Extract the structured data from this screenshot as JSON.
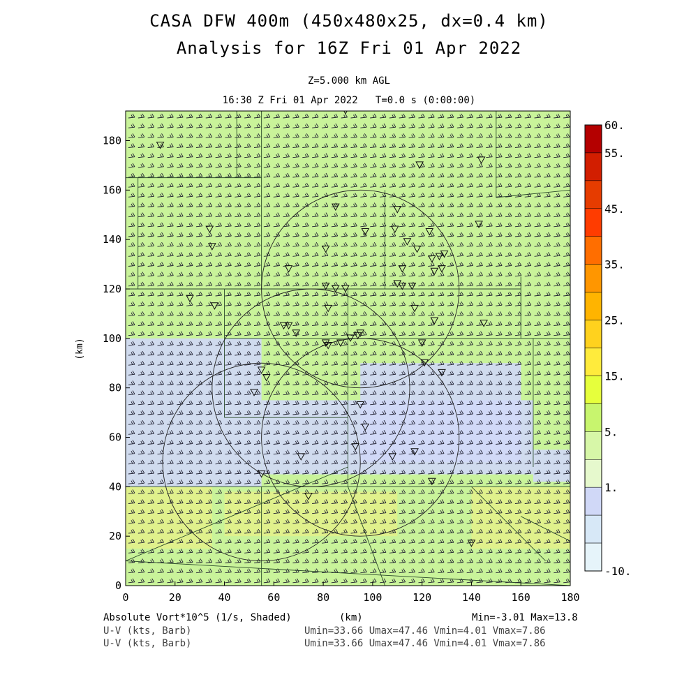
{
  "titles": {
    "line1": "CASA DFW 400m (450x480x25, dx=0.4 km)",
    "line2": "Analysis for 16Z Fri 01 Apr 2022",
    "level": "Z=5.000 km AGL",
    "time": "16:30 Z Fri 01 Apr 2022   T=0.0 s (0:00:00)"
  },
  "footer": {
    "field1": "Absolute Vort*10^5 (1/s, Shaded)",
    "field2": "U-V (kts, Barb)",
    "field3": "U-V (kts, Barb)",
    "xunit": "(km)",
    "minmax": "Min=-3.01 Max=13.8",
    "uv1": "Umin=33.66 Umax=47.46 Vmin=4.01 Vmax=7.86",
    "uv2": "Umin=33.66 Umax=47.46 Vmin=4.01 Vmax=7.86"
  },
  "chart_data": {
    "type": "heatmap",
    "xlabel": "(km)",
    "ylabel": "(km)",
    "xlim": [
      0,
      180
    ],
    "ylim": [
      0,
      192
    ],
    "x_ticks": [
      "0",
      "20",
      "40",
      "60",
      "80",
      "100",
      "120",
      "140",
      "160",
      "180"
    ],
    "y_ticks": [
      "0",
      "20",
      "40",
      "60",
      "80",
      "100",
      "120",
      "140",
      "160",
      "180"
    ],
    "colorbar": {
      "labels": [
        "60.",
        "55.",
        "45.",
        "35.",
        "25.",
        "15.",
        "5.",
        "1.",
        "-10."
      ],
      "colors": [
        "#b40000",
        "#d21e00",
        "#e63c00",
        "#ff3c00",
        "#ff6e00",
        "#ff9600",
        "#ffb400",
        "#ffd21e",
        "#ffeb3c",
        "#e6ff3c",
        "#c8f56e",
        "#d7f7a8",
        "#e6f9cd",
        "#d0d8f7",
        "#d7e8f7",
        "#e6f4fa"
      ],
      "color_labels_index": [
        0,
        1,
        3,
        5,
        7,
        9,
        11,
        13,
        16
      ]
    },
    "min": -3.01,
    "max": 13.8,
    "background_color": "#c9f39a",
    "low_vort_color": "#d0d8f7",
    "high_vort_color": "#e4f08a",
    "regions_low": [
      {
        "x": [
          0,
          55
        ],
        "y": [
          40,
          100
        ]
      },
      {
        "x": [
          55,
          165
        ],
        "y": [
          45,
          75
        ]
      },
      {
        "x": [
          95,
          160
        ],
        "y": [
          50,
          90
        ]
      },
      {
        "x": [
          165,
          180
        ],
        "y": [
          42,
          55
        ]
      }
    ],
    "regions_high": [
      {
        "x": [
          0,
          35
        ],
        "y": [
          15,
          40
        ]
      },
      {
        "x": [
          40,
          110
        ],
        "y": [
          20,
          38
        ]
      },
      {
        "x": [
          140,
          180
        ],
        "y": [
          15,
          40
        ]
      }
    ],
    "wind": {
      "umin": 33.66,
      "umax": 47.46,
      "vmin": 4.01,
      "vmax": 7.86
    },
    "radar_rings": [
      {
        "cx": 95,
        "cy": 120,
        "r": 40
      },
      {
        "cx": 75,
        "cy": 80,
        "r": 40
      },
      {
        "cx": 55,
        "cy": 50,
        "r": 40
      },
      {
        "cx": 95,
        "cy": 60,
        "r": 40
      }
    ],
    "station_triangles": [
      [
        14,
        178
      ],
      [
        89,
        192
      ],
      [
        119,
        170
      ],
      [
        144,
        172
      ],
      [
        85,
        153
      ],
      [
        110,
        152
      ],
      [
        143,
        146
      ],
      [
        34,
        144
      ],
      [
        97,
        143
      ],
      [
        109,
        144
      ],
      [
        123,
        143
      ],
      [
        35,
        137
      ],
      [
        81,
        136
      ],
      [
        114,
        139
      ],
      [
        118,
        136
      ],
      [
        124,
        132
      ],
      [
        127,
        133
      ],
      [
        129,
        134
      ],
      [
        66,
        128
      ],
      [
        112,
        128
      ],
      [
        125,
        127
      ],
      [
        128,
        128
      ],
      [
        81,
        121
      ],
      [
        85,
        120
      ],
      [
        89,
        120
      ],
      [
        110,
        122
      ],
      [
        112,
        121
      ],
      [
        116,
        121
      ],
      [
        26,
        116
      ],
      [
        36,
        113
      ],
      [
        82,
        112
      ],
      [
        117,
        112
      ],
      [
        64,
        105
      ],
      [
        66,
        105
      ],
      [
        69,
        102
      ],
      [
        81,
        98
      ],
      [
        82,
        97
      ],
      [
        87,
        98
      ],
      [
        91,
        100
      ],
      [
        94,
        101
      ],
      [
        95,
        102
      ],
      [
        125,
        107
      ],
      [
        120,
        98
      ],
      [
        121,
        90
      ],
      [
        145,
        106
      ],
      [
        55,
        87
      ],
      [
        57,
        84
      ],
      [
        52,
        78
      ],
      [
        128,
        86
      ],
      [
        95,
        73
      ],
      [
        97,
        64
      ],
      [
        117,
        54
      ],
      [
        71,
        52
      ],
      [
        93,
        56
      ],
      [
        108,
        52
      ],
      [
        55,
        45
      ],
      [
        74,
        36
      ],
      [
        124,
        42
      ],
      [
        140,
        17
      ]
    ]
  }
}
